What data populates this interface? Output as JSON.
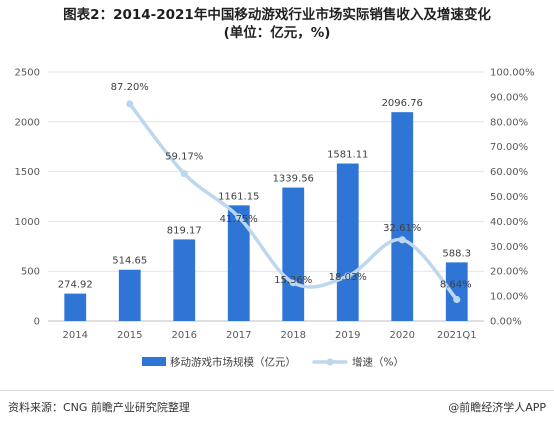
{
  "chart_data": {
    "type": "bar",
    "title_line1": "图表2：2014-2021年中国移动游戏行业市场实际销售收入及增速变化",
    "title_line2": "(单位：亿元，%)",
    "categories": [
      "2014",
      "2015",
      "2016",
      "2017",
      "2018",
      "2019",
      "2020",
      "2021Q1"
    ],
    "series": [
      {
        "name": "移动游戏市场规模（亿元）",
        "type": "bar",
        "axis": "left",
        "values": [
          274.92,
          514.65,
          819.17,
          1161.15,
          1339.56,
          1581.11,
          2096.76,
          588.3
        ],
        "labels": [
          "274.92",
          "514.65",
          "819.17",
          "1161.15",
          "1339.56",
          "1581.11",
          "2096.76",
          "588.3"
        ],
        "color": "#2e75d6"
      },
      {
        "name": "增速（%）",
        "type": "line",
        "axis": "right",
        "values": [
          null,
          87.2,
          59.17,
          41.75,
          15.36,
          18.03,
          32.61,
          8.64
        ],
        "labels": [
          "",
          "87.20%",
          "59.17%",
          "41.75%",
          "15.36%",
          "18.03%",
          "32.61%",
          "8.64%"
        ],
        "color": "#bdd7ee"
      }
    ],
    "y_left": {
      "min": 0,
      "max": 2500,
      "ticks": [
        0,
        500,
        1000,
        1500,
        2000,
        2500
      ],
      "tick_labels": [
        "0",
        "500",
        "1000",
        "1500",
        "2000",
        "2500"
      ]
    },
    "y_right": {
      "min": 0,
      "max": 100,
      "ticks": [
        0,
        10,
        20,
        30,
        40,
        50,
        60,
        70,
        80,
        90,
        100
      ],
      "tick_labels": [
        "0.00%",
        "10.00%",
        "20.00%",
        "30.00%",
        "40.00%",
        "50.00%",
        "60.00%",
        "70.00%",
        "80.00%",
        "90.00%",
        "100.00%"
      ]
    },
    "grid": true,
    "legend_position": "bottom"
  },
  "footer": {
    "source": "资料来源：CNG 前瞻产业研究院整理",
    "brand": "@前瞻经济学人APP"
  }
}
